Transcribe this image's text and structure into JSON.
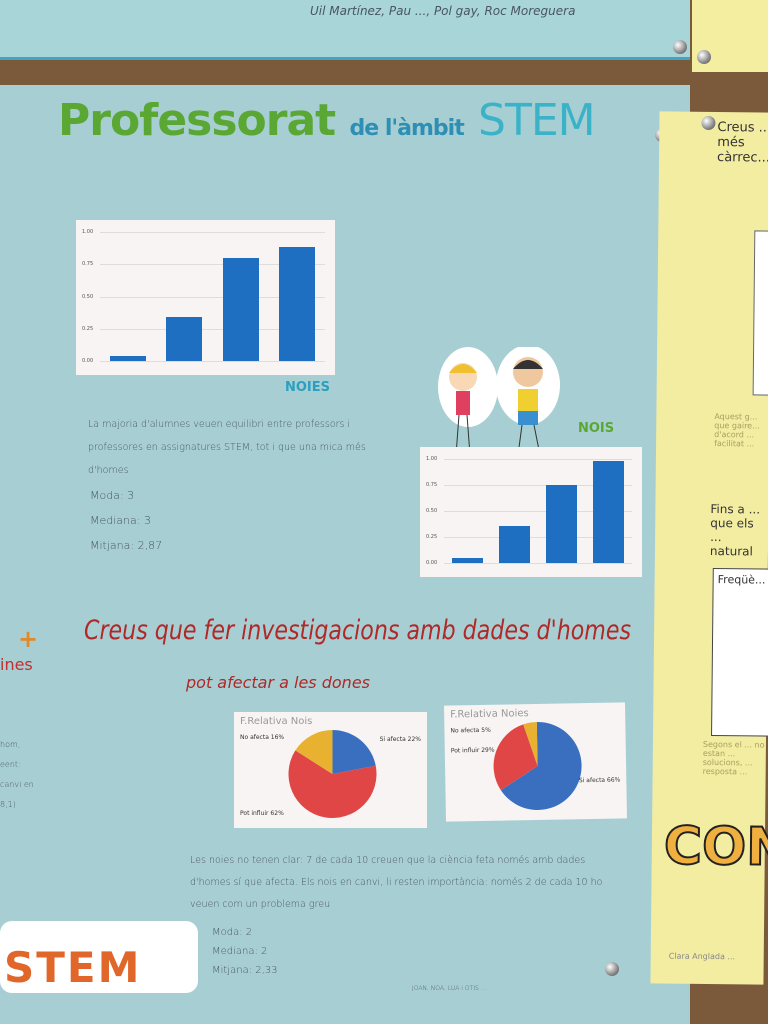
{
  "top_strip": {
    "names": "Uil Martínez, Pau ..., Pol gay, Roc Moreguera"
  },
  "poster": {
    "title_part1": "Professorat",
    "title_part2": "de l'àmbit",
    "title_part3": "STEM",
    "noies_label": "NOIES",
    "nois_label": "NOIS",
    "text1": "La majoria d'alumnes veuen equilibri entre professors i professores en assignatures STEM, tot i que una mica més d'homes",
    "stats1": [
      "Moda: 3",
      "Mediana: 3",
      "Mitjana: 2,87"
    ],
    "subtitle_line1": "Creus que fer investigacions amb dades d'homes",
    "subtitle_line2": "pot afectar a les dones",
    "text2": "Les noies no tenen clar: 7 de cada 10 creuen que la ciència feta només amb dades d'homes sí que afecta. Els nois en canvi, li resten importància: només 2 de cada 10 ho veuen com un problema greu",
    "stats2": [
      "Moda: 2",
      "Mediana: 2",
      "Mitjana: 2,33"
    ],
    "authors": "JOAN, NOA, LUA i OTIS ...",
    "left_fragments": [
      "ines",
      "hom,",
      "eent:",
      "canvi en",
      "8,1)"
    ],
    "logo": "STEM"
  },
  "side_poster": {
    "heading1": "Creus ... més càrrec...",
    "heading2": "Fins a ... que els ... natural ...",
    "table_title": "Freqüè...",
    "text": "Aquest g... que gaire... d'acord ... facilitat ...",
    "text2": "Segons el ... no estan ... solucions, ... resposta ...",
    "big": "CON",
    "author": "Clara Anglada ..."
  },
  "chart_data": [
    {
      "type": "bar",
      "caption": "NOIES",
      "yticks": [
        "0.00",
        "0.25",
        "0.50",
        "0.75",
        "1.00"
      ],
      "ylim": [
        0,
        1
      ],
      "values": [
        0.04,
        0.34,
        0.8,
        0.88
      ],
      "color": "#1e6fc2"
    },
    {
      "type": "bar",
      "caption": "NOIS",
      "yticks": [
        "0.00",
        "0.25",
        "0.50",
        "0.75",
        "1.00"
      ],
      "ylim": [
        0,
        1
      ],
      "values": [
        0.05,
        0.36,
        0.75,
        0.98
      ],
      "color": "#1e6fc2"
    },
    {
      "type": "pie",
      "title": "F.Relativa Nois",
      "slices": [
        {
          "label": "Si afecta",
          "value": 22,
          "color": "#3a6fc0"
        },
        {
          "label": "Pot influir",
          "value": 62,
          "color": "#e04646"
        },
        {
          "label": "No afecta",
          "value": 16,
          "color": "#e8b130"
        }
      ]
    },
    {
      "type": "pie",
      "title": "F.Relativa Noies",
      "slices": [
        {
          "label": "Si afecta",
          "value": 66,
          "color": "#3a6fc0"
        },
        {
          "label": "Pot influir",
          "value": 29,
          "color": "#e04646"
        },
        {
          "label": "No afecta",
          "value": 5,
          "color": "#e8b130"
        }
      ]
    }
  ]
}
